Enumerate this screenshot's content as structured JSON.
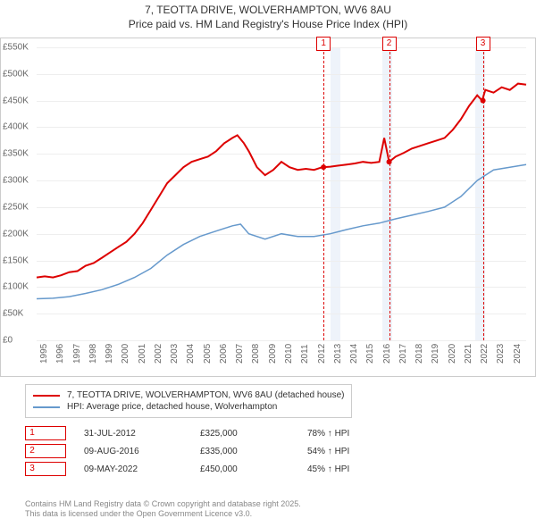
{
  "title_line1": "7, TEOTTA DRIVE, WOLVERHAMPTON, WV6 8AU",
  "title_line2": "Price paid vs. HM Land Registry's House Price Index (HPI)",
  "chart": {
    "type": "line",
    "x_start": 1995,
    "x_end": 2025,
    "ylim": [
      0,
      550000
    ],
    "ytick_step": 50000,
    "yticks": [
      "£0",
      "£50K",
      "£100K",
      "£150K",
      "£200K",
      "£250K",
      "£300K",
      "£350K",
      "£400K",
      "£450K",
      "£500K",
      "£550K"
    ],
    "xticks": [
      1995,
      1996,
      1997,
      1998,
      1999,
      2000,
      2001,
      2002,
      2003,
      2004,
      2005,
      2006,
      2007,
      2008,
      2009,
      2010,
      2011,
      2012,
      2013,
      2014,
      2015,
      2016,
      2017,
      2018,
      2019,
      2020,
      2021,
      2022,
      2023,
      2024
    ],
    "background": "#ffffff",
    "grid_color": "#eeeeee",
    "band_color": "#eef3fa",
    "dash_color": "#dd0000",
    "series": [
      {
        "name": "7, TEOTTA DRIVE, WOLVERHAMPTON, WV6 8AU (detached house)",
        "color": "#dd0000",
        "width": 2,
        "points": [
          [
            1995,
            118000
          ],
          [
            1995.5,
            120000
          ],
          [
            1996,
            118000
          ],
          [
            1996.5,
            122000
          ],
          [
            1997,
            128000
          ],
          [
            1997.5,
            130000
          ],
          [
            1998,
            140000
          ],
          [
            1998.5,
            145000
          ],
          [
            1999,
            155000
          ],
          [
            1999.5,
            165000
          ],
          [
            2000,
            175000
          ],
          [
            2000.5,
            185000
          ],
          [
            2001,
            200000
          ],
          [
            2001.5,
            220000
          ],
          [
            2002,
            245000
          ],
          [
            2002.5,
            270000
          ],
          [
            2003,
            295000
          ],
          [
            2003.5,
            310000
          ],
          [
            2004,
            325000
          ],
          [
            2004.5,
            335000
          ],
          [
            2005,
            340000
          ],
          [
            2005.5,
            345000
          ],
          [
            2006,
            355000
          ],
          [
            2006.5,
            370000
          ],
          [
            2007,
            380000
          ],
          [
            2007.3,
            385000
          ],
          [
            2007.7,
            370000
          ],
          [
            2008,
            355000
          ],
          [
            2008.5,
            325000
          ],
          [
            2009,
            310000
          ],
          [
            2009.5,
            320000
          ],
          [
            2010,
            335000
          ],
          [
            2010.5,
            325000
          ],
          [
            2011,
            320000
          ],
          [
            2011.5,
            322000
          ],
          [
            2012,
            320000
          ],
          [
            2012.5,
            325000
          ],
          [
            2013,
            326000
          ],
          [
            2013.5,
            328000
          ],
          [
            2014,
            330000
          ],
          [
            2014.5,
            332000
          ],
          [
            2015,
            335000
          ],
          [
            2015.5,
            333000
          ],
          [
            2016,
            335000
          ],
          [
            2016.3,
            380000
          ],
          [
            2016.6,
            335000
          ],
          [
            2017,
            345000
          ],
          [
            2017.5,
            352000
          ],
          [
            2018,
            360000
          ],
          [
            2018.5,
            365000
          ],
          [
            2019,
            370000
          ],
          [
            2019.5,
            375000
          ],
          [
            2020,
            380000
          ],
          [
            2020.5,
            395000
          ],
          [
            2021,
            415000
          ],
          [
            2021.5,
            440000
          ],
          [
            2022,
            460000
          ],
          [
            2022.3,
            450000
          ],
          [
            2022.5,
            470000
          ],
          [
            2023,
            465000
          ],
          [
            2023.5,
            475000
          ],
          [
            2024,
            470000
          ],
          [
            2024.5,
            482000
          ],
          [
            2025,
            480000
          ]
        ]
      },
      {
        "name": "HPI: Average price, detached house, Wolverhampton",
        "color": "#6699cc",
        "width": 1.5,
        "points": [
          [
            1995,
            78000
          ],
          [
            1996,
            79000
          ],
          [
            1997,
            82000
          ],
          [
            1998,
            88000
          ],
          [
            1999,
            95000
          ],
          [
            2000,
            105000
          ],
          [
            2001,
            118000
          ],
          [
            2002,
            135000
          ],
          [
            2003,
            160000
          ],
          [
            2004,
            180000
          ],
          [
            2005,
            195000
          ],
          [
            2006,
            205000
          ],
          [
            2007,
            215000
          ],
          [
            2007.5,
            218000
          ],
          [
            2008,
            200000
          ],
          [
            2009,
            190000
          ],
          [
            2010,
            200000
          ],
          [
            2011,
            195000
          ],
          [
            2012,
            195000
          ],
          [
            2013,
            200000
          ],
          [
            2014,
            208000
          ],
          [
            2015,
            215000
          ],
          [
            2016,
            220000
          ],
          [
            2017,
            228000
          ],
          [
            2018,
            235000
          ],
          [
            2019,
            242000
          ],
          [
            2020,
            250000
          ],
          [
            2021,
            270000
          ],
          [
            2022,
            300000
          ],
          [
            2023,
            320000
          ],
          [
            2024,
            325000
          ],
          [
            2025,
            330000
          ]
        ]
      }
    ],
    "bands": [
      {
        "start": 2013.0,
        "end": 2013.6
      },
      {
        "start": 2016.2,
        "end": 2016.8
      },
      {
        "start": 2021.9,
        "end": 2022.5
      }
    ],
    "dashes": [
      2012.58,
      2016.6,
      2022.35
    ],
    "markers_top": [
      {
        "n": "1",
        "x": 2012.58
      },
      {
        "n": "2",
        "x": 2016.6
      },
      {
        "n": "3",
        "x": 2022.35
      }
    ],
    "sale_points": [
      {
        "x": 2012.58,
        "y": 325000
      },
      {
        "x": 2016.6,
        "y": 335000
      },
      {
        "x": 2022.35,
        "y": 450000
      }
    ]
  },
  "legend": {
    "items": [
      {
        "color": "#dd0000",
        "label": "7, TEOTTA DRIVE, WOLVERHAMPTON, WV6 8AU (detached house)"
      },
      {
        "color": "#6699cc",
        "label": "HPI: Average price, detached house, Wolverhampton"
      }
    ]
  },
  "sales": [
    {
      "n": "1",
      "date": "31-JUL-2012",
      "price": "£325,000",
      "pct": "78% ↑ HPI"
    },
    {
      "n": "2",
      "date": "09-AUG-2016",
      "price": "£335,000",
      "pct": "54% ↑ HPI"
    },
    {
      "n": "3",
      "date": "09-MAY-2022",
      "price": "£450,000",
      "pct": "45% ↑ HPI"
    }
  ],
  "footer_line1": "Contains HM Land Registry data © Crown copyright and database right 2025.",
  "footer_line2": "This data is licensed under the Open Government Licence v3.0."
}
